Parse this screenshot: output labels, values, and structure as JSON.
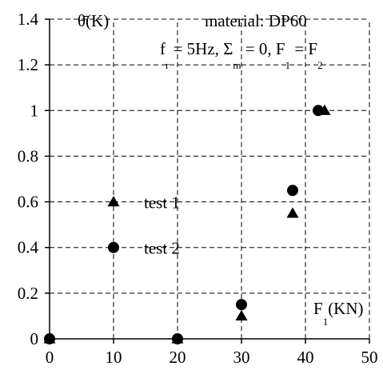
{
  "chart_data": {
    "type": "scatter",
    "title": "material: DP60",
    "conditions": {
      "f_base": "f",
      "f_sub": "r",
      "f_rest": " = 5Hz, ",
      "sigma_base": "Σ",
      "sigma_sub": "m",
      "sigma_rest": " = 0, ",
      "F1_base": "F",
      "F1_sub": "1",
      "eq": " = ",
      "F2_base": "F",
      "F2_sub": "2"
    },
    "ylabel": "θ̄(K)",
    "xlabel": {
      "base": "F",
      "sub": "1",
      "rest": "(KN)"
    },
    "xlim": [
      0,
      50
    ],
    "ylim": [
      0,
      1.4
    ],
    "x_ticks": [
      0,
      10,
      20,
      30,
      40,
      50
    ],
    "y_ticks": [
      0,
      0.2,
      0.4,
      0.6,
      0.8,
      1,
      1.2,
      1.4
    ],
    "x_tick_labels": [
      "0",
      "10",
      "20",
      "30",
      "40",
      "50"
    ],
    "y_tick_labels": [
      "0",
      "0.2",
      "0.4",
      "0.6",
      "0.8",
      "1",
      "1.2",
      "1.4"
    ],
    "grid": true,
    "series": [
      {
        "name": "test 1",
        "marker": "triangle",
        "x": [
          0,
          20,
          30,
          38,
          43
        ],
        "y": [
          0,
          0,
          0.1,
          0.55,
          1.0
        ]
      },
      {
        "name": "test 2",
        "marker": "circle",
        "x": [
          0,
          20,
          30,
          38,
          42
        ],
        "y": [
          0,
          0,
          0.15,
          0.65,
          1.0
        ]
      }
    ],
    "legend": [
      {
        "label": "test 1",
        "marker": "triangle",
        "x": 10,
        "y": 0.6
      },
      {
        "label": "test 2",
        "marker": "circle",
        "x": 10,
        "y": 0.4
      }
    ]
  }
}
